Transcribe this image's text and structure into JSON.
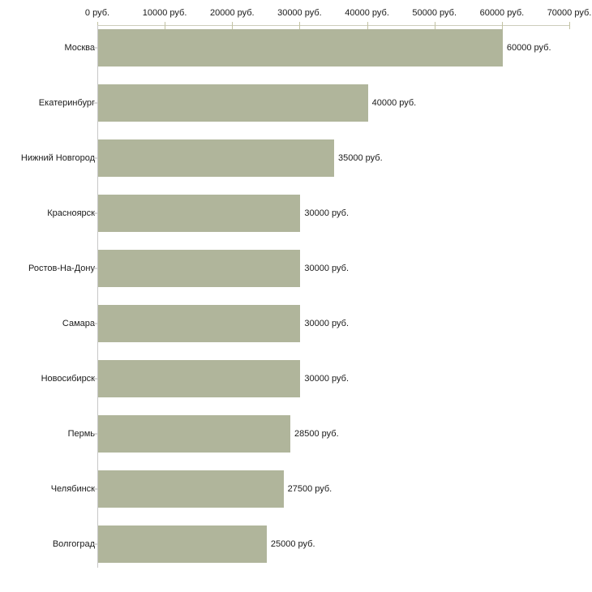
{
  "chart_data": {
    "type": "bar",
    "orientation": "horizontal",
    "title": "",
    "xlabel": "",
    "ylabel": "",
    "unit": "руб.",
    "categories": [
      "Москва",
      "Екатеринбург",
      "Нижний Новгород",
      "Красноярск",
      "Ростов-На-Дону",
      "Самара",
      "Новосибирск",
      "Пермь",
      "Челябинск",
      "Волгоград"
    ],
    "values": [
      60000,
      40000,
      35000,
      30000,
      30000,
      30000,
      30000,
      28500,
      27500,
      25000
    ],
    "value_labels": [
      "60000 руб.",
      "40000 руб.",
      "35000 руб.",
      "30000 руб.",
      "30000 руб.",
      "30000 руб.",
      "30000 руб.",
      "28500 руб.",
      "27500 руб.",
      "25000 руб."
    ],
    "x_ticks": [
      0,
      10000,
      20000,
      30000,
      40000,
      50000,
      60000,
      70000
    ],
    "x_tick_labels": [
      "0 руб.",
      "10000 руб.",
      "20000 руб.",
      "30000 руб.",
      "40000 руб.",
      "50000 руб.",
      "60000 руб.",
      "70000 руб."
    ],
    "xlim": [
      0,
      70000
    ],
    "grid": false,
    "legend": "none",
    "axis_position": "top",
    "colors": {
      "bar": "#b0b59b",
      "x_axis_line": "#ccccbc",
      "x_tick": "#c2c2a2",
      "y_axis_line": "#c8c8c8",
      "category_tick": "#b4b4b4",
      "text": "#1a1a1a",
      "background": "#ffffff"
    }
  }
}
